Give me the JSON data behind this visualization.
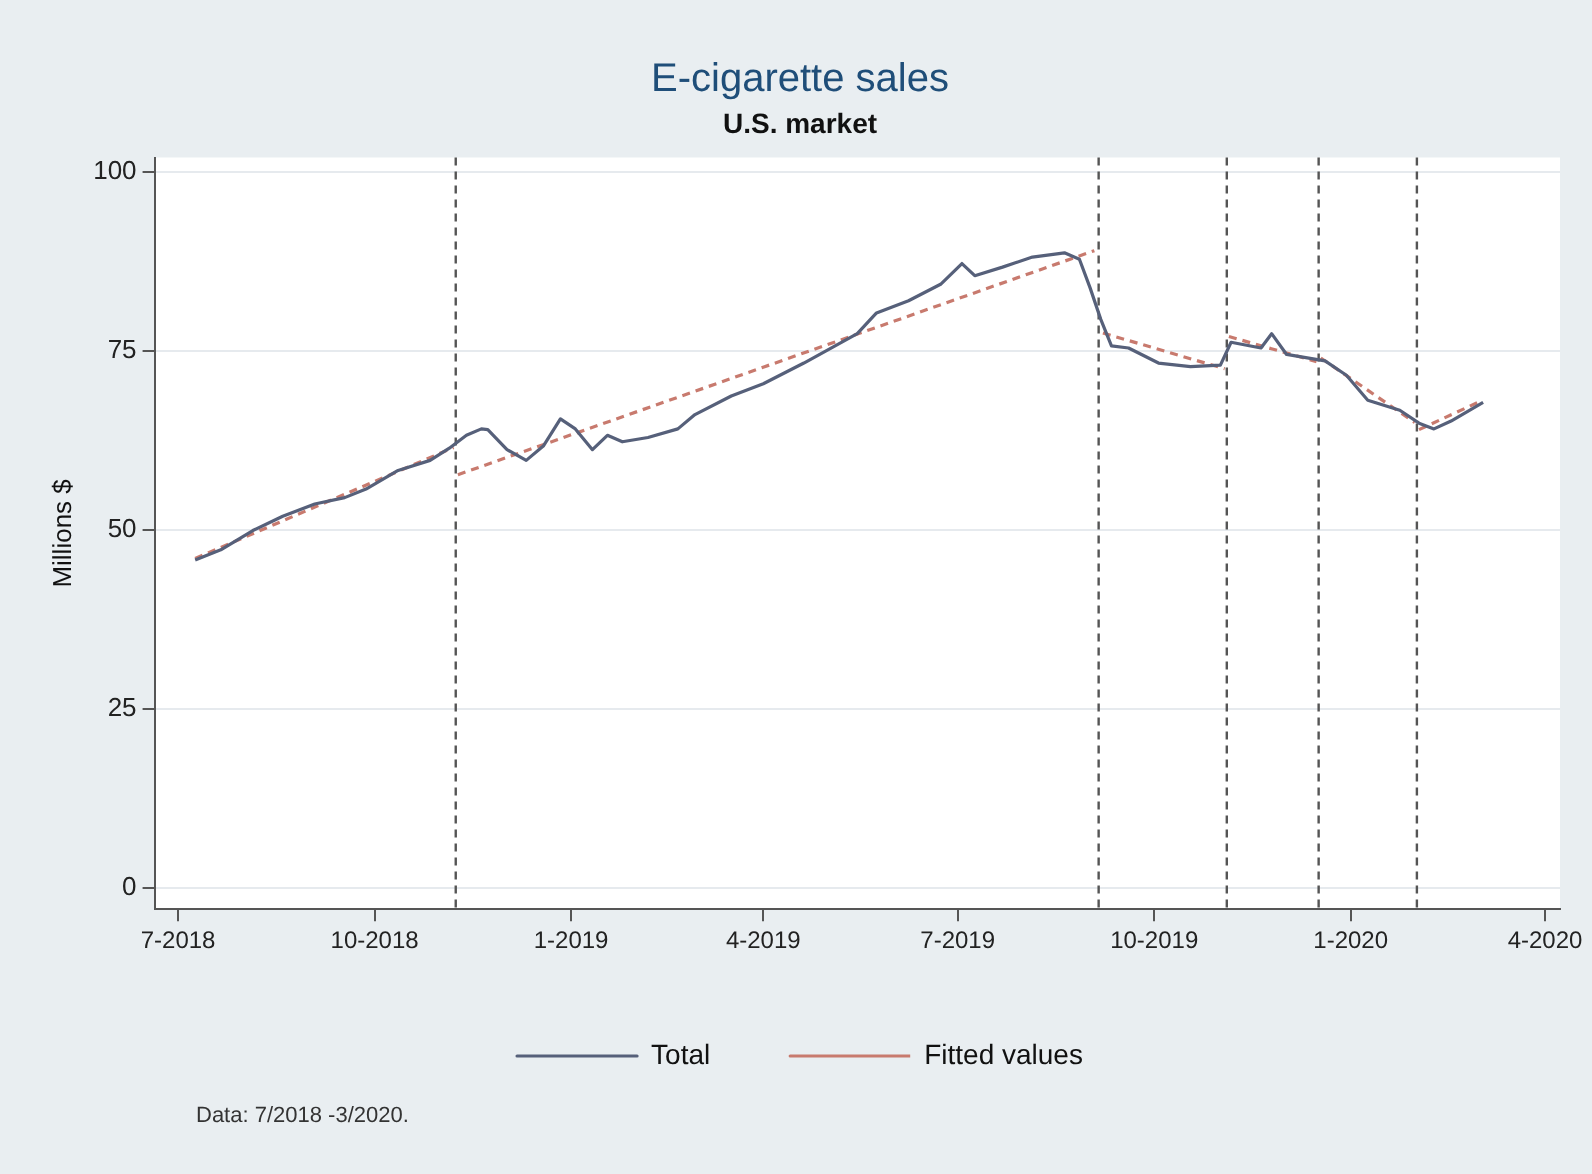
{
  "chart_data": {
    "type": "line",
    "title": "E-cigarette sales",
    "subtitle": "U.S. market",
    "ylabel": "Millions $",
    "xlim": [
      "2018-06-20",
      "2020-04-08"
    ],
    "xticks": [
      {
        "value": "2018-07-01",
        "label": "7-2018"
      },
      {
        "value": "2018-10-01",
        "label": "10-2018"
      },
      {
        "value": "2019-01-01",
        "label": "1-2019"
      },
      {
        "value": "2019-04-01",
        "label": "4-2019"
      },
      {
        "value": "2019-07-01",
        "label": "7-2019"
      },
      {
        "value": "2019-10-01",
        "label": "10-2019"
      },
      {
        "value": "2020-01-01",
        "label": "1-2020"
      },
      {
        "value": "2020-04-01",
        "label": "4-2020"
      }
    ],
    "ylim": [
      -3,
      102
    ],
    "yticks": [
      0,
      25,
      50,
      75,
      100
    ],
    "grid": "y",
    "legend": "bottom",
    "marker": "none",
    "series": [
      {
        "name": "Total",
        "color": "#56607a",
        "line_style": "solid",
        "x": [
          "2018-07-09",
          "2018-07-21",
          "2018-08-05",
          "2018-08-19",
          "2018-09-03",
          "2018-09-17",
          "2018-09-27",
          "2018-10-12",
          "2018-10-27",
          "2018-11-05",
          "2018-11-13",
          "2018-11-20",
          "2018-11-23",
          "2018-12-02",
          "2018-12-11",
          "2018-12-19",
          "2018-12-27",
          "2019-01-03",
          "2019-01-11",
          "2019-01-18",
          "2019-01-25",
          "2019-02-06",
          "2019-02-20",
          "2019-02-28",
          "2019-03-17",
          "2019-04-01",
          "2019-04-20",
          "2019-05-15",
          "2019-05-24",
          "2019-06-08",
          "2019-06-23",
          "2019-07-03",
          "2019-07-09",
          "2019-07-22",
          "2019-08-05",
          "2019-08-20",
          "2019-08-27",
          "2019-09-01",
          "2019-09-06",
          "2019-09-11",
          "2019-09-19",
          "2019-10-03",
          "2019-10-18",
          "2019-11-01",
          "2019-11-06",
          "2019-11-20",
          "2019-11-25",
          "2019-12-02",
          "2019-12-20",
          "2019-12-30",
          "2020-01-09",
          "2020-01-24",
          "2020-02-02",
          "2020-02-09",
          "2020-02-17",
          "2020-03-03"
        ],
        "values": [
          45.8,
          47.2,
          49.9,
          51.9,
          53.6,
          54.5,
          55.7,
          58.3,
          59.7,
          61.4,
          63.2,
          64.1,
          64,
          61.2,
          59.7,
          61.7,
          65.5,
          64.1,
          61.2,
          63.2,
          62.3,
          62.9,
          64.1,
          66.1,
          68.7,
          70.4,
          73.3,
          77.4,
          80.3,
          82,
          84.3,
          87.2,
          85.5,
          86.7,
          88.1,
          88.7,
          87.8,
          83.8,
          79.4,
          75.7,
          75.4,
          73.3,
          72.8,
          73,
          76.2,
          75.4,
          77.4,
          74.5,
          73.6,
          71.6,
          68.1,
          66.7,
          64.9,
          64.1,
          65.2,
          67.8
        ]
      },
      {
        "name": "Fitted values",
        "color": "#c87a6e",
        "line_style": "dashed",
        "x": [
          "2018-07-09",
          "2018-11-07",
          "2018-11-08",
          "2018-11-09",
          "2019-09-03",
          "2019-09-05",
          "2019-09-07",
          "2019-11-03",
          "2019-11-04",
          "2019-11-05",
          "2019-12-16",
          "2019-12-17",
          "2019-12-18",
          "2020-01-31",
          "2020-02-01",
          "2020-02-02",
          "2020-03-02"
        ],
        "values": [
          46,
          61.5,
          null,
          57.7,
          89,
          null,
          77.5,
          72.5,
          null,
          77,
          73.5,
          null,
          74,
          65,
          null,
          64,
          68
        ]
      }
    ],
    "ref_lines": [
      {
        "axis": "x",
        "value": "2018-11-08",
        "color": "#555555",
        "line_style": "dashed"
      },
      {
        "axis": "x",
        "value": "2019-09-05",
        "color": "#555555",
        "line_style": "dashed"
      },
      {
        "axis": "x",
        "value": "2019-11-04",
        "color": "#555555",
        "line_style": "dashed"
      },
      {
        "axis": "x",
        "value": "2019-12-17",
        "color": "#555555",
        "line_style": "dashed"
      },
      {
        "axis": "x",
        "value": "2020-02-01",
        "color": "#555555",
        "line_style": "dashed"
      }
    ],
    "annotations": [
      "Data: 7/2018 -3/2020."
    ]
  }
}
